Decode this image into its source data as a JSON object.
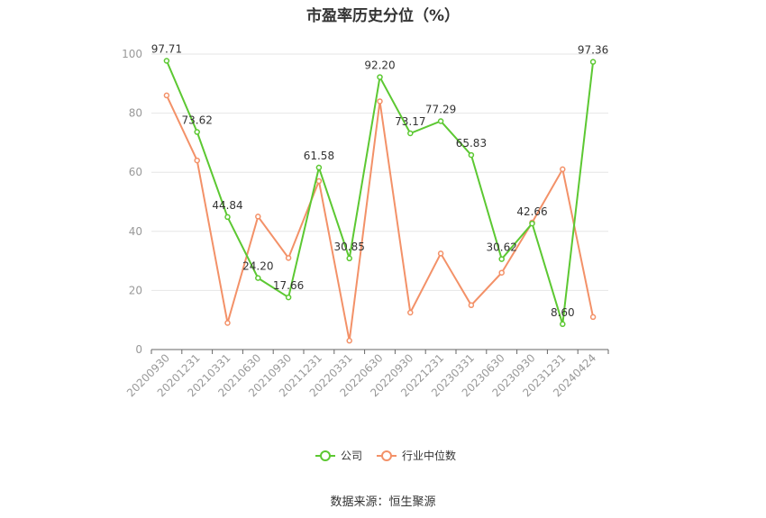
{
  "chart_data": {
    "type": "line",
    "title": "市盈率历史分位（%）",
    "categories": [
      "20200930",
      "20201231",
      "20210331",
      "20210630",
      "20210930",
      "20211231",
      "20220331",
      "20220630",
      "20220930",
      "20221231",
      "20230331",
      "20230630",
      "20230930",
      "20231231",
      "20240424"
    ],
    "series": [
      {
        "name": "公司",
        "color": "#5cc832",
        "values": [
          97.71,
          73.62,
          44.84,
          24.2,
          17.66,
          61.58,
          30.85,
          92.2,
          73.17,
          77.29,
          65.83,
          30.62,
          42.66,
          8.6,
          97.36
        ],
        "labels": [
          "97.71",
          "73.62",
          "44.84",
          "24.20",
          "17.66",
          "61.58",
          "30.85",
          "92.20",
          "73.17",
          "77.29",
          "65.83",
          "30.62",
          "42.66",
          "8.60",
          "97.36"
        ]
      },
      {
        "name": "行业中位数",
        "color": "#f39168",
        "values": [
          86,
          64,
          9,
          45,
          31,
          57,
          3,
          84,
          12.5,
          32.5,
          15,
          26,
          43,
          61,
          11
        ]
      }
    ],
    "ylim": [
      0,
      100
    ],
    "yticks": [
      0,
      20,
      40,
      60,
      80,
      100
    ],
    "xlabel": "",
    "ylabel": "",
    "grid": true,
    "legend_position": "bottom"
  },
  "source": "数据来源：恒生聚源"
}
